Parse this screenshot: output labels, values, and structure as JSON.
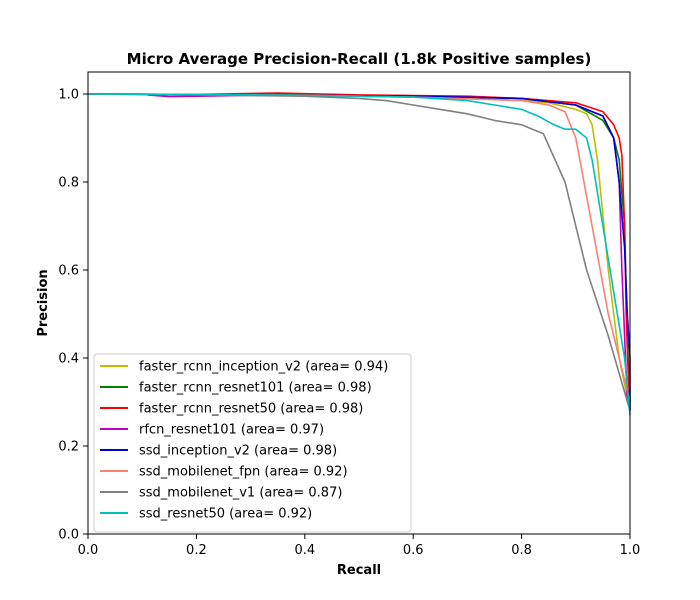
{
  "chart_data": {
    "type": "line",
    "title": "Micro Average Precision-Recall (1.8k Positive samples)",
    "xlabel": "Recall",
    "ylabel": "Precision",
    "xlim": [
      0,
      1
    ],
    "ylim": [
      0,
      1.05
    ],
    "xticks": [
      "0.0",
      "0.2",
      "0.4",
      "0.6",
      "0.8",
      "1.0"
    ],
    "yticks": [
      "0.0",
      "0.2",
      "0.4",
      "0.6",
      "0.8",
      "1.0"
    ],
    "grid": false,
    "legend_position": "lower-left",
    "series": [
      {
        "name": "faster_rcnn_inception_v2 (area= 0.94)",
        "color": "#bfbf00",
        "points": [
          [
            0,
            1.0
          ],
          [
            0.2,
            0.999
          ],
          [
            0.4,
            0.997
          ],
          [
            0.6,
            0.993
          ],
          [
            0.7,
            0.99
          ],
          [
            0.8,
            0.985
          ],
          [
            0.85,
            0.98
          ],
          [
            0.9,
            0.965
          ],
          [
            0.92,
            0.955
          ],
          [
            0.93,
            0.93
          ],
          [
            0.94,
            0.85
          ],
          [
            0.96,
            0.6
          ],
          [
            0.98,
            0.4
          ],
          [
            1.0,
            0.28
          ]
        ]
      },
      {
        "name": "faster_rcnn_resnet101 (area= 0.98)",
        "color": "#008000",
        "points": [
          [
            0,
            1.0
          ],
          [
            0.2,
            0.999
          ],
          [
            0.4,
            0.998
          ],
          [
            0.6,
            0.996
          ],
          [
            0.8,
            0.99
          ],
          [
            0.9,
            0.975
          ],
          [
            0.95,
            0.94
          ],
          [
            0.97,
            0.9
          ],
          [
            0.98,
            0.85
          ],
          [
            0.99,
            0.7
          ],
          [
            0.995,
            0.45
          ],
          [
            1.0,
            0.3
          ]
        ]
      },
      {
        "name": "faster_rcnn_resnet50 (area= 0.98)",
        "color": "#ff0000",
        "points": [
          [
            0,
            1.0
          ],
          [
            0.2,
            0.999
          ],
          [
            0.35,
            1.002
          ],
          [
            0.5,
            0.998
          ],
          [
            0.7,
            0.995
          ],
          [
            0.8,
            0.99
          ],
          [
            0.9,
            0.98
          ],
          [
            0.95,
            0.96
          ],
          [
            0.97,
            0.93
          ],
          [
            0.98,
            0.9
          ],
          [
            0.985,
            0.86
          ],
          [
            0.99,
            0.7
          ],
          [
            0.993,
            0.5
          ],
          [
            0.997,
            0.35
          ],
          [
            1.0,
            0.3
          ]
        ]
      },
      {
        "name": "rfcn_resnet101 (area= 0.97)",
        "color": "#bf00bf",
        "points": [
          [
            0.11,
            0.998
          ],
          [
            0.15,
            0.994
          ],
          [
            0.2,
            0.995
          ],
          [
            0.3,
            0.997
          ],
          [
            0.5,
            0.996
          ],
          [
            0.7,
            0.993
          ],
          [
            0.8,
            0.99
          ],
          [
            0.9,
            0.975
          ],
          [
            0.95,
            0.95
          ],
          [
            0.97,
            0.9
          ],
          [
            0.98,
            0.8
          ],
          [
            0.985,
            0.6
          ],
          [
            0.99,
            0.45
          ],
          [
            0.995,
            0.3
          ],
          [
            1.0,
            0.29
          ]
        ]
      },
      {
        "name": "ssd_inception_v2 (area= 0.98)",
        "color": "#0000cc",
        "points": [
          [
            0,
            1.0
          ],
          [
            0.2,
            0.999
          ],
          [
            0.4,
            0.997
          ],
          [
            0.6,
            0.995
          ],
          [
            0.8,
            0.99
          ],
          [
            0.9,
            0.975
          ],
          [
            0.95,
            0.95
          ],
          [
            0.97,
            0.9
          ],
          [
            0.98,
            0.8
          ],
          [
            0.99,
            0.65
          ],
          [
            0.995,
            0.5
          ],
          [
            1.0,
            0.4
          ],
          [
            1.0,
            0.28
          ]
        ]
      },
      {
        "name": "ssd_mobilenet_fpn (area= 0.92)",
        "color": "#fa8072",
        "points": [
          [
            0,
            1.0
          ],
          [
            0.2,
            0.999
          ],
          [
            0.4,
            0.997
          ],
          [
            0.6,
            0.993
          ],
          [
            0.8,
            0.985
          ],
          [
            0.85,
            0.975
          ],
          [
            0.88,
            0.96
          ],
          [
            0.9,
            0.9
          ],
          [
            0.93,
            0.7
          ],
          [
            0.96,
            0.5
          ],
          [
            0.98,
            0.4
          ],
          [
            1.0,
            0.3
          ]
        ]
      },
      {
        "name": "ssd_mobilenet_v1 (area= 0.87)",
        "color": "#808080",
        "points": [
          [
            0,
            1.0
          ],
          [
            0.2,
            0.998
          ],
          [
            0.4,
            0.995
          ],
          [
            0.5,
            0.99
          ],
          [
            0.55,
            0.985
          ],
          [
            0.6,
            0.975
          ],
          [
            0.65,
            0.965
          ],
          [
            0.7,
            0.955
          ],
          [
            0.75,
            0.94
          ],
          [
            0.8,
            0.93
          ],
          [
            0.82,
            0.92
          ],
          [
            0.84,
            0.91
          ],
          [
            0.88,
            0.8
          ],
          [
            0.92,
            0.6
          ],
          [
            0.96,
            0.45
          ],
          [
            1.0,
            0.28
          ]
        ]
      },
      {
        "name": "ssd_resnet50 (area= 0.92)",
        "color": "#00bfbf",
        "points": [
          [
            0,
            1.0
          ],
          [
            0.2,
            0.999
          ],
          [
            0.4,
            0.997
          ],
          [
            0.6,
            0.993
          ],
          [
            0.7,
            0.985
          ],
          [
            0.75,
            0.975
          ],
          [
            0.8,
            0.965
          ],
          [
            0.83,
            0.95
          ],
          [
            0.86,
            0.93
          ],
          [
            0.88,
            0.92
          ],
          [
            0.9,
            0.92
          ],
          [
            0.92,
            0.9
          ],
          [
            0.93,
            0.85
          ],
          [
            0.95,
            0.7
          ],
          [
            0.97,
            0.55
          ],
          [
            0.99,
            0.4
          ],
          [
            1.0,
            0.27
          ]
        ]
      }
    ]
  }
}
